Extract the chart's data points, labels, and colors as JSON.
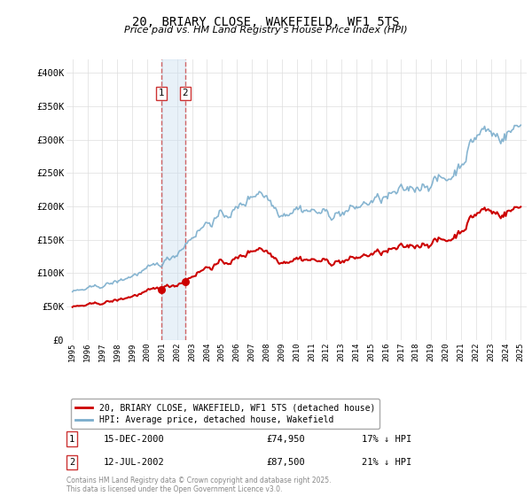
{
  "title": "20, BRIARY CLOSE, WAKEFIELD, WF1 5TS",
  "subtitle": "Price paid vs. HM Land Registry's House Price Index (HPI)",
  "legend_line1": "20, BRIARY CLOSE, WAKEFIELD, WF1 5TS (detached house)",
  "legend_line2": "HPI: Average price, detached house, Wakefield",
  "line1_color": "#cc0000",
  "line2_color": "#7aadcc",
  "ylim": [
    0,
    420000
  ],
  "yticks": [
    0,
    50000,
    100000,
    150000,
    200000,
    250000,
    300000,
    350000,
    400000
  ],
  "ytick_labels": [
    "£0",
    "£50K",
    "£100K",
    "£150K",
    "£200K",
    "£250K",
    "£300K",
    "£350K",
    "£400K"
  ],
  "background_color": "#ffffff",
  "grid_color": "#dddddd",
  "annotation1_date": "15-DEC-2000",
  "annotation1_price": "£74,950",
  "annotation1_hpi": "17% ↓ HPI",
  "annotation2_date": "12-JUL-2002",
  "annotation2_price": "£87,500",
  "annotation2_hpi": "21% ↓ HPI",
  "footer": "Contains HM Land Registry data © Crown copyright and database right 2025.\nThis data is licensed under the Open Government Licence v3.0.",
  "prop_year1": 2000.96,
  "prop_value1": 74950,
  "prop_year2": 2002.53,
  "prop_value2": 87500,
  "xtick_years": [
    1995,
    1996,
    1997,
    1998,
    1999,
    2000,
    2001,
    2002,
    2003,
    2004,
    2005,
    2006,
    2007,
    2008,
    2009,
    2010,
    2011,
    2012,
    2013,
    2014,
    2015,
    2016,
    2017,
    2018,
    2019,
    2020,
    2021,
    2022,
    2023,
    2024,
    2025
  ]
}
